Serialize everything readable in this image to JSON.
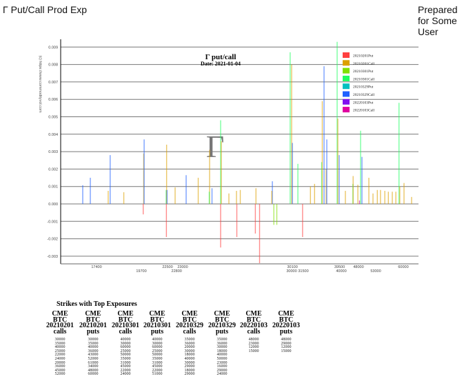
{
  "header": {
    "title": "Γ Put/Call Prod Exp",
    "prepared": "Prepared for Some User"
  },
  "chart_data": {
    "type": "bar",
    "title": "Γ put/call",
    "subtitle": "Date: 2021-01-04",
    "ylabel": "(c) https://www.commodityvol.com",
    "watermark": "Γ",
    "ylim": [
      -0.0034,
      0.0095
    ],
    "yticks": [
      "0.009",
      "0.008",
      "0.007",
      "0.006",
      "0.005",
      "0.004",
      "0.003",
      "0.002",
      "0.001",
      "0.000",
      "-0.001",
      "-0.002",
      "-0.003"
    ],
    "ytick_values": [
      0.009,
      0.008,
      0.007,
      0.006,
      0.005,
      0.004,
      0.003,
      0.002,
      0.001,
      0,
      -0.001,
      -0.002,
      -0.003
    ],
    "grid": true,
    "legend_position": "top-right",
    "xtick_labels": [
      {
        "x": 17400,
        "label": "17400"
      },
      {
        "x": 19700,
        "label": "19700"
      },
      {
        "x": 22500,
        "label": "22500"
      },
      {
        "x": 22800,
        "label": "22800"
      },
      {
        "x": 23000,
        "label": "23000"
      },
      {
        "x": 30000,
        "label": "30000"
      },
      {
        "x": 30100,
        "label": "30100"
      },
      {
        "x": 31500,
        "label": "31500"
      },
      {
        "x": 39500,
        "label": "39500"
      },
      {
        "x": 40000,
        "label": "40000"
      },
      {
        "x": 48000,
        "label": "48000"
      },
      {
        "x": 53000,
        "label": "53000"
      },
      {
        "x": 60000,
        "label": "60000"
      }
    ],
    "series": [
      {
        "name": "20210201Put",
        "color": "#ff4040"
      },
      {
        "name": "20210201Call",
        "color": "#dca000"
      },
      {
        "name": "20210301Put",
        "color": "#80e000"
      },
      {
        "name": "20210301Call",
        "color": "#20ff60"
      },
      {
        "name": "20210329Put",
        "color": "#00c0c0"
      },
      {
        "name": "20210329Call",
        "color": "#2060ff"
      },
      {
        "name": "20220103Put",
        "color": "#8010f0"
      },
      {
        "name": "20220103Call",
        "color": "#e000a0"
      }
    ],
    "bars": [
      {
        "x": 13400,
        "s": 5,
        "v": 0.00107
      },
      {
        "x": 15600,
        "s": 5,
        "v": 0.0015
      },
      {
        "x": 18000,
        "s": 1,
        "v": 0.00075
      },
      {
        "x": 18100,
        "s": 5,
        "v": 0.0028
      },
      {
        "x": 18800,
        "s": 1,
        "v": 0.00067
      },
      {
        "x": 19950,
        "s": 1,
        "v": 0.0029
      },
      {
        "x": 20000,
        "s": 5,
        "v": 0.0037
      },
      {
        "x": 19900,
        "s": 0,
        "v": -0.0006
      },
      {
        "x": 22350,
        "s": 3,
        "v": 0.0008
      },
      {
        "x": 22400,
        "s": 1,
        "v": 0.0034
      },
      {
        "x": 22380,
        "s": 0,
        "v": -0.0019
      },
      {
        "x": 22450,
        "s": 5,
        "v": 0.0008
      },
      {
        "x": 22750,
        "s": 1,
        "v": 0.00095
      },
      {
        "x": 23100,
        "s": 5,
        "v": 0.00165
      },
      {
        "x": 23450,
        "s": 1,
        "v": 0.0015
      },
      {
        "x": 23780,
        "s": 1,
        "v": 0.0031
      },
      {
        "x": 23770,
        "s": 3,
        "v": 0.0007
      },
      {
        "x": 23850,
        "s": 5,
        "v": 0.0009
      },
      {
        "x": 24500,
        "s": 3,
        "v": 0.0048
      },
      {
        "x": 24500,
        "s": 0,
        "v": -0.0025
      },
      {
        "x": 24600,
        "s": 1,
        "v": 0.0036
      },
      {
        "x": 25700,
        "s": 1,
        "v": 0.0006
      },
      {
        "x": 26800,
        "s": 1,
        "v": 0.00075
      },
      {
        "x": 26850,
        "s": 0,
        "v": -0.0019
      },
      {
        "x": 27200,
        "s": 1,
        "v": 0.0008
      },
      {
        "x": 28500,
        "s": 1,
        "v": 0.0009
      },
      {
        "x": 28450,
        "s": 0,
        "v": -0.0017
      },
      {
        "x": 28800,
        "s": 0,
        "v": -0.0034
      },
      {
        "x": 29350,
        "s": 5,
        "v": 0.0013
      },
      {
        "x": 29330,
        "s": 1,
        "v": 0.00075
      },
      {
        "x": 29400,
        "s": 2,
        "v": -0.0012
      },
      {
        "x": 29500,
        "s": 2,
        "v": -0.0012
      },
      {
        "x": 29950,
        "s": 3,
        "v": 0.0087
      },
      {
        "x": 30000,
        "s": 1,
        "v": 0.008
      },
      {
        "x": 30100,
        "s": 5,
        "v": 0.0035
      },
      {
        "x": 30800,
        "s": 3,
        "v": 0.0023
      },
      {
        "x": 31400,
        "s": 0,
        "v": -0.0019
      },
      {
        "x": 32700,
        "s": 1,
        "v": 0.001
      },
      {
        "x": 33400,
        "s": 1,
        "v": 0.00115
      },
      {
        "x": 34600,
        "s": 3,
        "v": 0.0024
      },
      {
        "x": 34700,
        "s": 1,
        "v": 0.0059
      },
      {
        "x": 35000,
        "s": 5,
        "v": 0.0079
      },
      {
        "x": 35600,
        "s": 1,
        "v": 0.002
      },
      {
        "x": 35800,
        "s": 5,
        "v": 0.0037
      },
      {
        "x": 38800,
        "s": 3,
        "v": 0.0093
      },
      {
        "x": 39000,
        "s": 1,
        "v": 0.0049
      },
      {
        "x": 39400,
        "s": 5,
        "v": 0.0028
      },
      {
        "x": 41900,
        "s": 1,
        "v": 0.00075
      },
      {
        "x": 45400,
        "s": 3,
        "v": 0.00115
      },
      {
        "x": 45500,
        "s": 1,
        "v": 0.0016
      },
      {
        "x": 47700,
        "s": 1,
        "v": 0.0011
      },
      {
        "x": 48300,
        "s": 7,
        "v": 0.0002
      },
      {
        "x": 48600,
        "s": 3,
        "v": 0.0042
      },
      {
        "x": 49000,
        "s": 5,
        "v": 0.0027
      },
      {
        "x": 51000,
        "s": 1,
        "v": 0.0015
      },
      {
        "x": 52200,
        "s": 1,
        "v": 0.0006
      },
      {
        "x": 53400,
        "s": 1,
        "v": 0.0008
      },
      {
        "x": 54200,
        "s": 1,
        "v": 0.0008
      },
      {
        "x": 55300,
        "s": 1,
        "v": 0.00075
      },
      {
        "x": 56200,
        "s": 1,
        "v": 0.0007
      },
      {
        "x": 57200,
        "s": 1,
        "v": 0.0007
      },
      {
        "x": 58100,
        "s": 1,
        "v": 0.0007
      },
      {
        "x": 58900,
        "s": 3,
        "v": 0.0058
      },
      {
        "x": 59100,
        "s": 1,
        "v": 0.001
      },
      {
        "x": 60250,
        "s": 1,
        "v": 0.0012
      },
      {
        "x": 63000,
        "s": 1,
        "v": 0.0004
      }
    ]
  },
  "table": {
    "title": "Strikes with Top Exposures",
    "columns": [
      {
        "h1": "CME",
        "h2": "BTC",
        "h3": "20210201",
        "h4": "calls",
        "values": "30000\n35000\n40000\n25000\n22000\n24000\n20000\n36000\n45000\n52000"
      },
      {
        "h1": "CME",
        "h2": "BTC",
        "h3": "20210201",
        "h4": "puts",
        "values": "30000\n35000\n40000\n36000\n43000\n52000\n61000\n34000\n48000\n60000"
      },
      {
        "h1": "CME",
        "h2": "BTC",
        "h3": "20210301",
        "h4": "calls",
        "values": "40000\n30000\n60000\n25000\n50000\n35000\n31000\n45000\n22000\n24000"
      },
      {
        "h1": "CME",
        "h2": "BTC",
        "h3": "20210301",
        "h4": "puts",
        "values": "40000\n30000\n60000\n25000\n50000\n35000\n31000\n45000\n22000\n51000"
      },
      {
        "h1": "CME",
        "h2": "BTC",
        "h3": "20210329",
        "h4": "calls",
        "values": "35000\n36000\n20000\n30000\n18000\n40000\n30000\n29000\n18000\n29000"
      },
      {
        "h1": "CME",
        "h2": "BTC",
        "h3": "20210329",
        "h4": "puts",
        "values": "35000\n36000\n30000\n18000\n40000\n50000\n23000\n16000\n29000\n24000"
      },
      {
        "h1": "CME",
        "h2": "BTC",
        "h3": "20220103",
        "h4": "calls",
        "values": "48000\n23000\n12000\n15000"
      },
      {
        "h1": "CME",
        "h2": "BTC",
        "h3": "20220103",
        "h4": "puts",
        "values": "48000\n29000\n12000\n15000"
      }
    ]
  }
}
